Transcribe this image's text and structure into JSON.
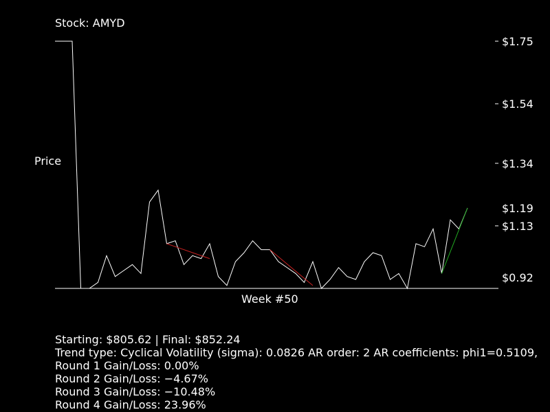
{
  "chart_data": {
    "type": "line",
    "title": "Stock: AMYD",
    "ylabel": "Price",
    "xlabel": "Week #50",
    "y_ticks": [
      {
        "label": "$1.75",
        "value": 1.75
      },
      {
        "label": "$1.54",
        "value": 1.54
      },
      {
        "label": "$1.34",
        "value": 1.34
      },
      {
        "label": "$1.13",
        "value": 1.13
      }
    ],
    "y_markers": [
      {
        "label": "$1.19",
        "value": 1.19
      },
      {
        "label": "$0.92",
        "value": 0.92
      }
    ],
    "ylim": [
      0.92,
      1.75
    ],
    "x_range": [
      0,
      50
    ],
    "series": [
      {
        "color": "#ffffff",
        "points": [
          [
            0,
            1.75
          ],
          [
            1,
            1.75
          ],
          [
            2,
            1.75
          ],
          [
            3,
            0.92
          ],
          [
            4,
            0.92
          ],
          [
            5,
            0.94
          ],
          [
            6,
            1.03
          ],
          [
            7,
            0.96
          ],
          [
            8,
            0.98
          ],
          [
            9,
            1.0
          ],
          [
            10,
            0.97
          ],
          [
            11,
            1.21
          ],
          [
            12,
            1.25
          ],
          [
            13,
            1.07
          ],
          [
            14,
            1.08
          ],
          [
            15,
            1.0
          ],
          [
            16,
            1.03
          ],
          [
            17,
            1.02
          ],
          [
            18,
            1.07
          ],
          [
            19,
            0.96
          ],
          [
            20,
            0.93
          ],
          [
            21,
            1.01
          ],
          [
            22,
            1.04
          ],
          [
            23,
            1.08
          ],
          [
            24,
            1.05
          ],
          [
            25,
            1.05
          ],
          [
            26,
            1.01
          ],
          [
            27,
            0.99
          ],
          [
            28,
            0.97
          ],
          [
            29,
            0.94
          ],
          [
            30,
            1.01
          ],
          [
            31,
            0.92
          ],
          [
            32,
            0.95
          ],
          [
            33,
            0.99
          ],
          [
            34,
            0.96
          ],
          [
            35,
            0.95
          ],
          [
            36,
            1.01
          ],
          [
            37,
            1.04
          ],
          [
            38,
            1.03
          ],
          [
            39,
            0.95
          ],
          [
            40,
            0.97
          ],
          [
            41,
            0.92
          ],
          [
            42,
            1.07
          ],
          [
            43,
            1.06
          ],
          [
            44,
            1.12
          ],
          [
            45,
            0.97
          ],
          [
            46,
            1.15
          ],
          [
            47,
            1.12
          ],
          [
            48,
            1.19
          ]
        ]
      },
      {
        "color": "#cc2222",
        "points": [
          [
            13,
            1.07
          ],
          [
            18,
            1.02
          ]
        ]
      },
      {
        "color": "#cc2222",
        "points": [
          [
            25,
            1.05
          ],
          [
            30,
            0.93
          ]
        ]
      },
      {
        "color": "#22aa22",
        "points": [
          [
            45,
            0.97
          ],
          [
            48,
            1.19
          ]
        ]
      }
    ]
  },
  "stats": {
    "line1": "Starting: $805.62 | Final: $852.24",
    "line2": "Trend type: Cyclical Volatility (sigma): 0.0826 AR order: 2 AR coefficients: phi1=0.5109,",
    "line3": "Round 1 Gain/Loss: 0.00%",
    "line4": "Round 2 Gain/Loss: −4.67%",
    "line5": "Round 3 Gain/Loss: −10.48%",
    "line6": "Round 4 Gain/Loss: 23.96%"
  }
}
